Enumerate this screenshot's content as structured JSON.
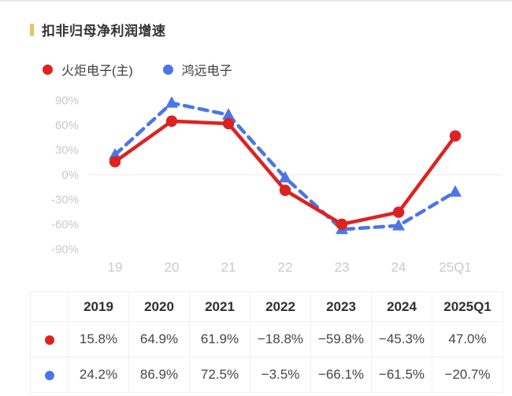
{
  "title": "扣非归母净利润增速",
  "accent_color": "#e9c25a",
  "legend": [
    {
      "label": "火炬电子(主)",
      "color": "#dc2320",
      "marker": "circle"
    },
    {
      "label": "鸿远电子",
      "color": "#4b76e4",
      "marker": "circle"
    }
  ],
  "chart_data": {
    "type": "line",
    "title": "扣非归母净利润增速",
    "categories": [
      "19",
      "20",
      "21",
      "22",
      "23",
      "24",
      "25Q1"
    ],
    "series": [
      {
        "name": "火炬电子(主)",
        "color": "#dc2320",
        "line_style": "solid",
        "marker": "circle",
        "values": [
          15.8,
          64.9,
          61.9,
          -18.8,
          -59.8,
          -45.3,
          47.0
        ]
      },
      {
        "name": "鸿远电子",
        "color": "#4b76e4",
        "line_style": "dashed",
        "marker": "triangle",
        "values": [
          24.2,
          86.9,
          72.5,
          -3.5,
          -66.1,
          -61.5,
          -20.7
        ]
      }
    ],
    "ytick_values": [
      90,
      60,
      30,
      0,
      -30,
      -60,
      -90
    ],
    "ytick_labels": [
      "90%",
      "60%",
      "30%",
      "0%",
      "-30%",
      "-60%",
      "-90%"
    ],
    "ylim": [
      -100,
      100
    ],
    "unit": "%",
    "grid": "zero-line-only",
    "zero_line_color": "#ebebee",
    "legend_position": "top-left"
  },
  "table": {
    "headers": [
      "",
      "2019",
      "2020",
      "2021",
      "2022",
      "2023",
      "2024",
      "2025Q1"
    ],
    "rows": [
      {
        "series": "火炬电子(主)",
        "marker_color": "#e02020",
        "values": [
          "15.8%",
          "64.9%",
          "61.9%",
          "−18.8%",
          "−59.8%",
          "−45.3%",
          "47.0%"
        ]
      },
      {
        "series": "鸿远电子",
        "marker_color": "#4b76e4",
        "values": [
          "24.2%",
          "86.9%",
          "72.5%",
          "−3.5%",
          "−66.1%",
          "−61.5%",
          "−20.7%"
        ]
      }
    ]
  }
}
